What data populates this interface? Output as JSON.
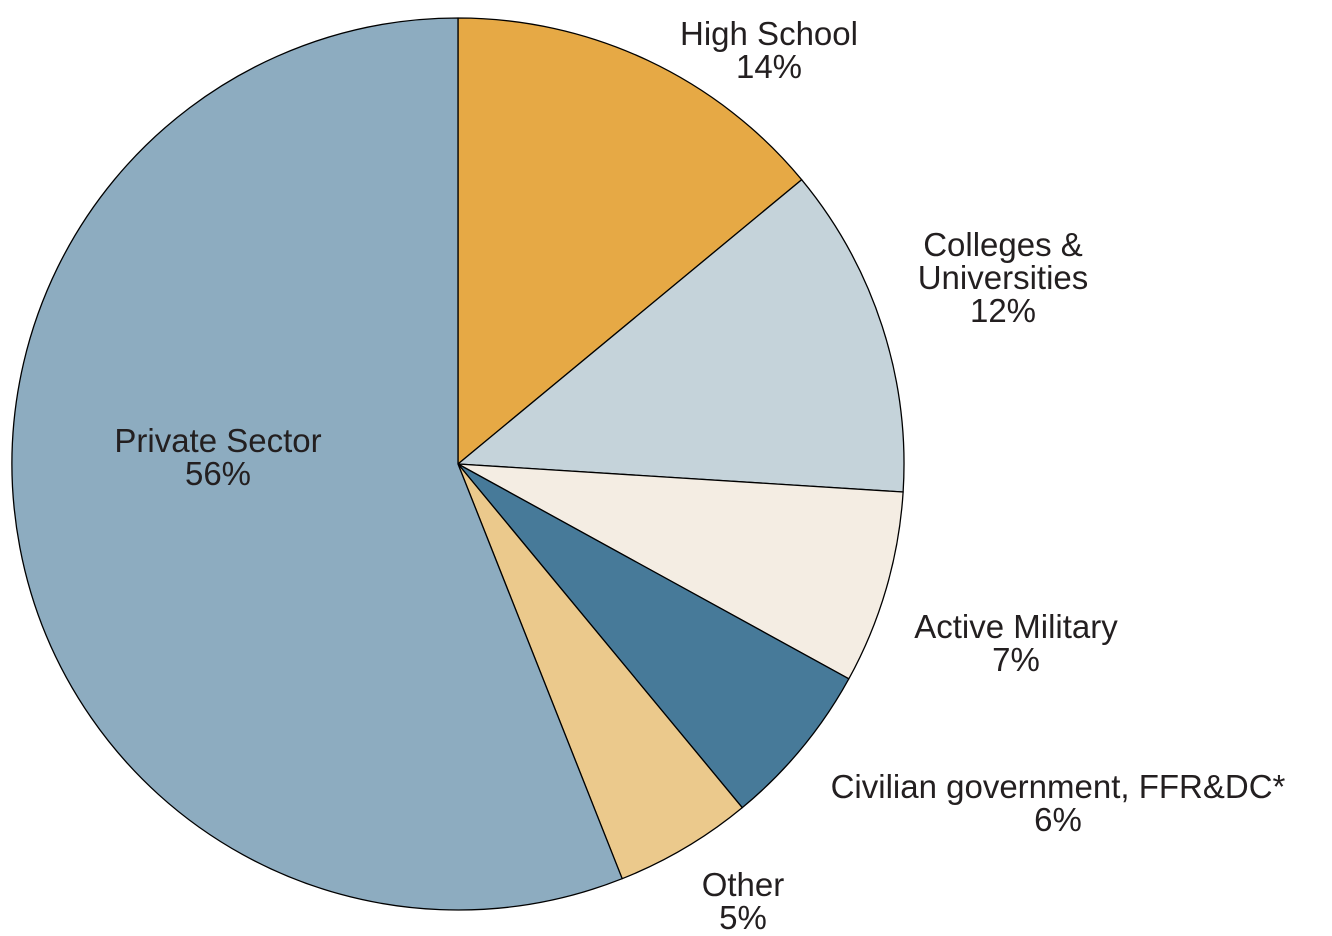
{
  "chart_data": {
    "type": "pie",
    "title": "",
    "slices": [
      {
        "label_lines": [
          "High School"
        ],
        "value": 14,
        "value_label": "14%",
        "color": "#e6a945"
      },
      {
        "label_lines": [
          "Colleges &",
          "Universities"
        ],
        "value": 12,
        "value_label": "12%",
        "color": "#c5d3da"
      },
      {
        "label_lines": [
          "Active Military"
        ],
        "value": 7,
        "value_label": "7%",
        "color": "#f4ede3"
      },
      {
        "label_lines": [
          "Civilian government, FFR&DC*"
        ],
        "value": 6,
        "value_label": "6%",
        "color": "#477a99"
      },
      {
        "label_lines": [
          "Other"
        ],
        "value": 5,
        "value_label": "5%",
        "color": "#ebc98c"
      },
      {
        "label_lines": [
          "Private Sector"
        ],
        "value": 56,
        "value_label": "56%",
        "color": "#8dacc0"
      }
    ],
    "start_at": "top",
    "direction": "clockwise",
    "legend": "none"
  }
}
